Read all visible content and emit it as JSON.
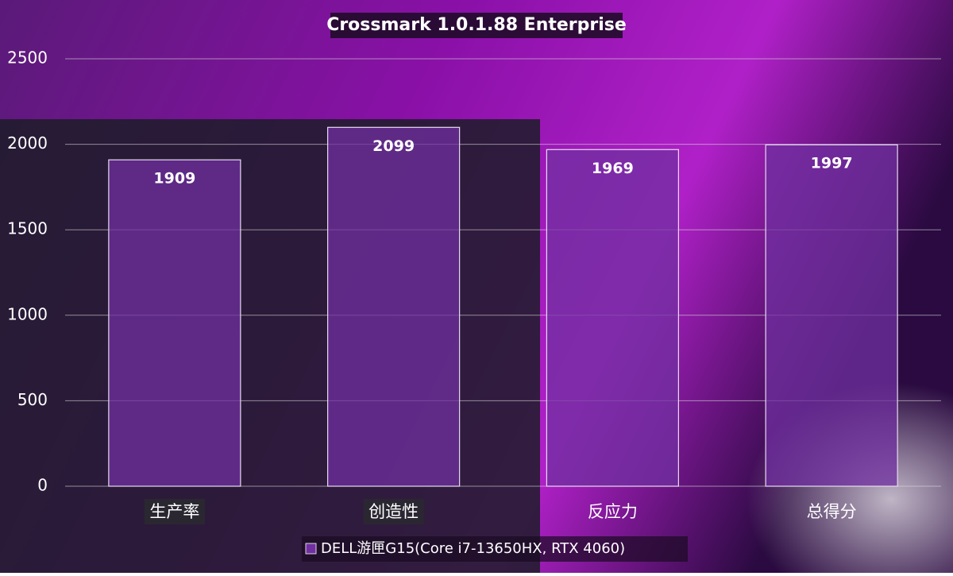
{
  "chart_data": {
    "type": "bar",
    "title": "Crossmark 1.0.1.88 Enterprise",
    "categories": [
      "生产率",
      "创造性",
      "反应力",
      "总得分"
    ],
    "series": [
      {
        "name": "DELL游匣G15(Core i7-13650HX, RTX 4060)",
        "color": "#7030a0",
        "values": [
          1909,
          2099,
          1969,
          1997
        ]
      }
    ],
    "ylim": [
      0,
      2500
    ],
    "yticks": [
      0,
      500,
      1000,
      1500,
      2000,
      2500
    ],
    "grid": true,
    "legend": "bottom"
  }
}
